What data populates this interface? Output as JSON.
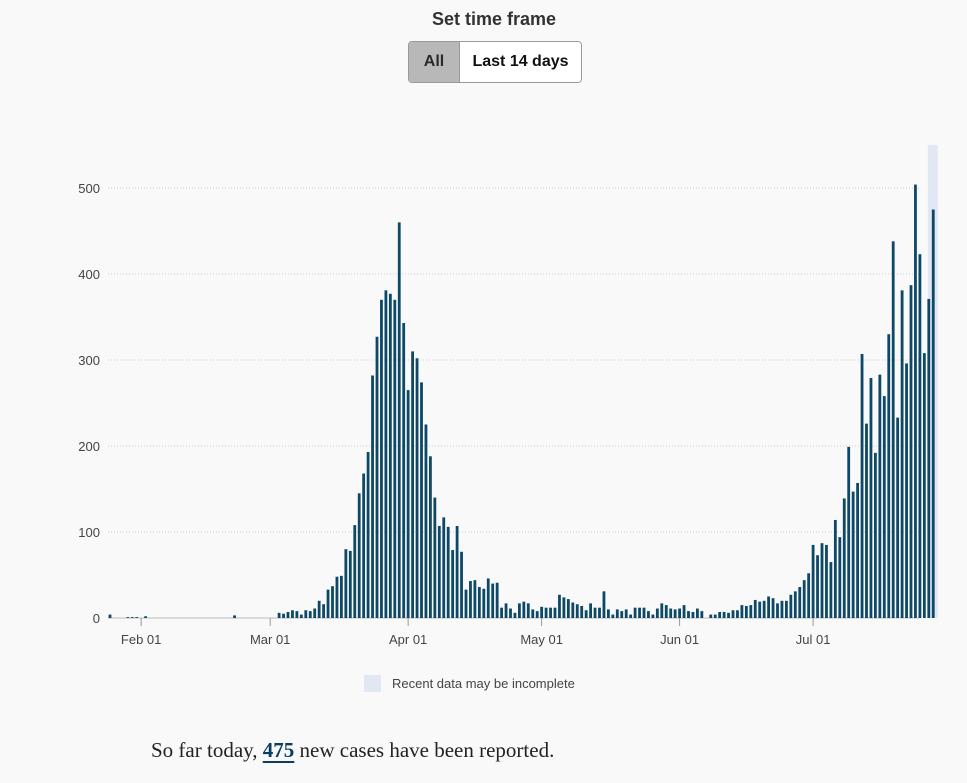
{
  "controls": {
    "title": "Set time frame",
    "options": [
      "All",
      "Last 14 days"
    ],
    "selected": "All"
  },
  "summary": {
    "prefix": "So far today,",
    "count": "475",
    "suffix": "new cases have been reported."
  },
  "colors": {
    "bar": "#0d4866",
    "incomplete_band": "#e2e8f3",
    "grid": "#cccccc",
    "selected_option_bg": "#b8b8b8"
  },
  "chart_data": {
    "type": "bar",
    "title": "",
    "xlabel": "",
    "ylabel": "",
    "ylim": [
      0,
      550
    ],
    "y_ticks": [
      0,
      100,
      200,
      300,
      400,
      500
    ],
    "x_ticks": [
      {
        "date": "2020-02-01",
        "label": "Feb 01"
      },
      {
        "date": "2020-03-01",
        "label": "Mar 01"
      },
      {
        "date": "2020-04-01",
        "label": "Apr 01"
      },
      {
        "date": "2020-05-01",
        "label": "May 01"
      },
      {
        "date": "2020-06-01",
        "label": "Jun 01"
      },
      {
        "date": "2020-07-01",
        "label": "Jul 01"
      }
    ],
    "x_start": "2020-01-25",
    "x_end": "2020-07-27",
    "incomplete_period": {
      "start": "2020-07-27",
      "end": "2020-07-29",
      "label": "Recent data may be incomplete"
    },
    "grid": "horizontal dotted",
    "legend": "bottom-center",
    "values": [
      4,
      0,
      0,
      0,
      1,
      1,
      1,
      0,
      2,
      0,
      0,
      0,
      0,
      0,
      0,
      0,
      0,
      0,
      0,
      0,
      0,
      0,
      0,
      0,
      0,
      0,
      0,
      0,
      3,
      0,
      0,
      0,
      0,
      0,
      0,
      0,
      0,
      0,
      6,
      5,
      7,
      9,
      8,
      4,
      9,
      8,
      11,
      20,
      16,
      33,
      37,
      48,
      49,
      80,
      78,
      108,
      145,
      168,
      193,
      282,
      327,
      370,
      381,
      377,
      370,
      460,
      343,
      265,
      310,
      302,
      274,
      225,
      188,
      140,
      107,
      117,
      106,
      79,
      107,
      77,
      33,
      43,
      44,
      36,
      34,
      46,
      40,
      41,
      12,
      17,
      11,
      6,
      17,
      19,
      17,
      10,
      8,
      13,
      12,
      12,
      12,
      27,
      24,
      22,
      18,
      16,
      14,
      9,
      17,
      12,
      12,
      31,
      10,
      4,
      10,
      8,
      10,
      4,
      12,
      12,
      12,
      8,
      4,
      11,
      17,
      15,
      11,
      10,
      11,
      15,
      8,
      7,
      11,
      8,
      0,
      4,
      4,
      7,
      7,
      6,
      9,
      9,
      15,
      14,
      15,
      21,
      19,
      20,
      25,
      23,
      17,
      20,
      20,
      27,
      31,
      36,
      44,
      52,
      85,
      73,
      87,
      85,
      65,
      114,
      94,
      139,
      199,
      147,
      157,
      307,
      226,
      279,
      192,
      283,
      258,
      330,
      438,
      233,
      381,
      296,
      387,
      504,
      423,
      308,
      371,
      475
    ]
  },
  "legend_label": "Recent data may be incomplete"
}
